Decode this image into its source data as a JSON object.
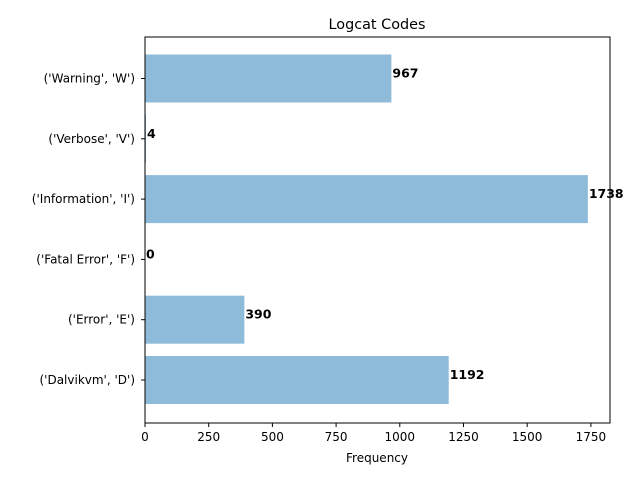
{
  "chart_data": {
    "type": "bar",
    "orientation": "horizontal",
    "title": "Logcat Codes",
    "xlabel": "Frequency",
    "ylabel": "",
    "categories": [
      "('Dalvikvm', 'D')",
      "('Error', 'E')",
      "('Fatal Error', 'F')",
      "('Information', 'I')",
      "('Verbose', 'V')",
      "('Warning', 'W')"
    ],
    "values": [
      1192,
      390,
      0,
      1738,
      4,
      967
    ],
    "data_labels": [
      "1192",
      "390",
      "0",
      "1738",
      "4",
      "967"
    ],
    "xlim": [
      0,
      1825
    ],
    "xticks": [
      0,
      250,
      500,
      750,
      1000,
      1250,
      1500,
      1750
    ],
    "xtick_labels": [
      "0",
      "250",
      "500",
      "750",
      "1000",
      "1250",
      "1500",
      "1750"
    ],
    "grid": false,
    "bar_color": "#8fbbda"
  }
}
